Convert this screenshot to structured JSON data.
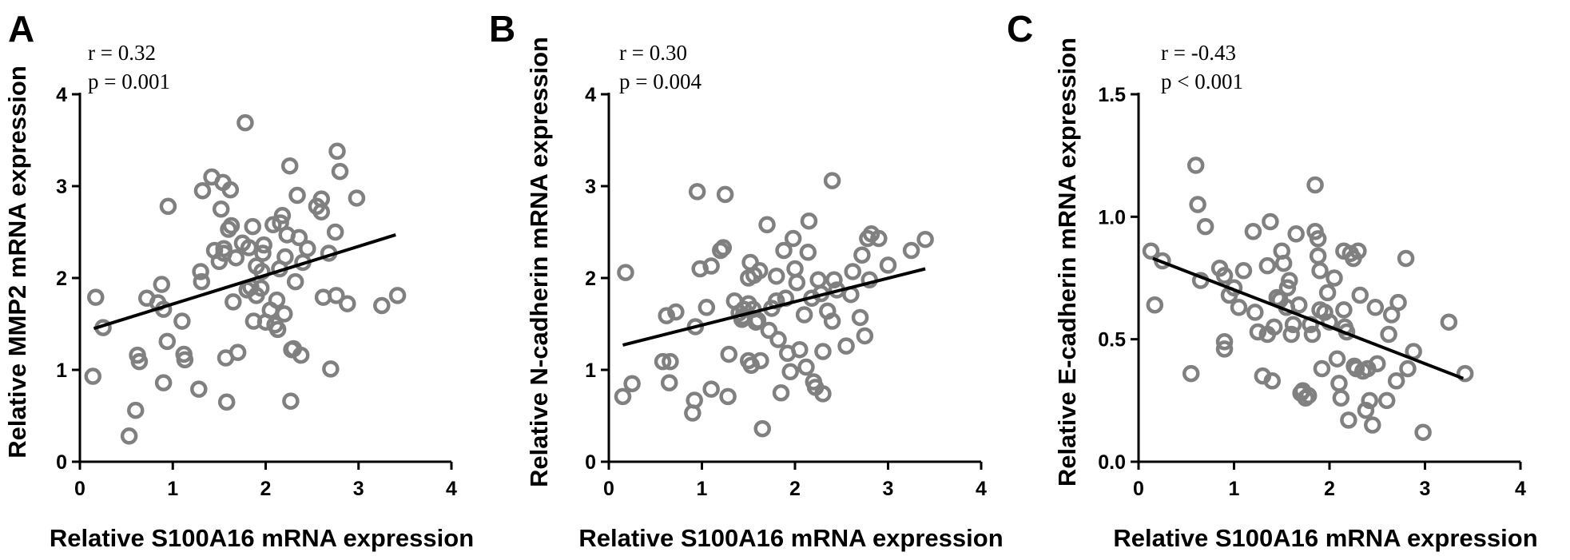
{
  "chart_data": [
    {
      "type": "scatter",
      "panel": "A",
      "stats": [
        "r = 0.32",
        "p = 0.001"
      ],
      "xlabel": "Relative S100A16 mRNA expression",
      "ylabel": "Relative MMP2 mRNA expression",
      "xlim": [
        0,
        4
      ],
      "ylim": [
        0,
        4
      ],
      "xticks": [
        0,
        1,
        2,
        3,
        4
      ],
      "yticks": [
        0,
        1,
        2,
        3,
        4
      ],
      "ytick_labels": [
        "0",
        "1",
        "2",
        "3",
        "4"
      ],
      "fit": [
        [
          0.15,
          1.45
        ],
        [
          3.4,
          2.47
        ]
      ],
      "points": [
        [
          0.14,
          0.93
        ],
        [
          0.17,
          1.79
        ],
        [
          0.25,
          1.46
        ],
        [
          0.53,
          0.28
        ],
        [
          0.6,
          0.56
        ],
        [
          0.62,
          1.16
        ],
        [
          0.64,
          1.09
        ],
        [
          0.72,
          1.78
        ],
        [
          0.84,
          1.73
        ],
        [
          0.88,
          1.93
        ],
        [
          0.9,
          1.66
        ],
        [
          0.9,
          0.86
        ],
        [
          0.94,
          1.31
        ],
        [
          0.95,
          2.78
        ],
        [
          1.1,
          1.53
        ],
        [
          1.12,
          1.17
        ],
        [
          1.13,
          1.11
        ],
        [
          1.28,
          0.79
        ],
        [
          1.3,
          2.07
        ],
        [
          1.31,
          1.96
        ],
        [
          1.32,
          2.95
        ],
        [
          1.42,
          3.1
        ],
        [
          1.45,
          2.3
        ],
        [
          1.5,
          2.18
        ],
        [
          1.52,
          2.75
        ],
        [
          1.54,
          3.04
        ],
        [
          1.55,
          2.32
        ],
        [
          1.55,
          2.27
        ],
        [
          1.57,
          1.13
        ],
        [
          1.58,
          0.65
        ],
        [
          1.6,
          2.53
        ],
        [
          1.62,
          2.96
        ],
        [
          1.63,
          2.57
        ],
        [
          1.65,
          1.74
        ],
        [
          1.68,
          2.22
        ],
        [
          1.7,
          1.19
        ],
        [
          1.75,
          2.38
        ],
        [
          1.78,
          3.69
        ],
        [
          1.8,
          1.87
        ],
        [
          1.82,
          2.33
        ],
        [
          1.84,
          1.9
        ],
        [
          1.86,
          2.56
        ],
        [
          1.87,
          1.53
        ],
        [
          1.9,
          1.81
        ],
        [
          1.9,
          2.13
        ],
        [
          1.95,
          1.89
        ],
        [
          1.96,
          2.07
        ],
        [
          1.97,
          2.27
        ],
        [
          1.98,
          2.36
        ],
        [
          2.0,
          1.52
        ],
        [
          2.05,
          1.65
        ],
        [
          2.08,
          2.58
        ],
        [
          2.1,
          1.49
        ],
        [
          2.12,
          1.76
        ],
        [
          2.13,
          1.44
        ],
        [
          2.15,
          2.1
        ],
        [
          2.16,
          2.6
        ],
        [
          2.18,
          2.68
        ],
        [
          2.2,
          1.61
        ],
        [
          2.21,
          2.23
        ],
        [
          2.23,
          2.47
        ],
        [
          2.26,
          3.22
        ],
        [
          2.27,
          0.66
        ],
        [
          2.28,
          1.22
        ],
        [
          2.3,
          1.23
        ],
        [
          2.32,
          1.96
        ],
        [
          2.34,
          2.9
        ],
        [
          2.36,
          2.44
        ],
        [
          2.38,
          1.16
        ],
        [
          2.4,
          2.17
        ],
        [
          2.45,
          2.32
        ],
        [
          2.55,
          2.78
        ],
        [
          2.6,
          2.86
        ],
        [
          2.6,
          2.72
        ],
        [
          2.62,
          1.79
        ],
        [
          2.68,
          2.27
        ],
        [
          2.7,
          1.01
        ],
        [
          2.75,
          2.5
        ],
        [
          2.76,
          1.81
        ],
        [
          2.77,
          3.38
        ],
        [
          2.8,
          3.16
        ],
        [
          2.88,
          1.72
        ],
        [
          2.98,
          2.87
        ],
        [
          3.25,
          1.7
        ],
        [
          3.42,
          1.81
        ]
      ]
    },
    {
      "type": "scatter",
      "panel": "B",
      "stats": [
        "r = 0.30",
        "p = 0.004"
      ],
      "xlabel": "Relative S100A16 mRNA expression",
      "ylabel": "Relative N-cadherin mRNA expression",
      "xlim": [
        0,
        4
      ],
      "ylim": [
        0,
        4
      ],
      "xticks": [
        0,
        1,
        2,
        3,
        4
      ],
      "yticks": [
        0,
        1,
        2,
        3,
        4
      ],
      "ytick_labels": [
        "0",
        "1",
        "2",
        "3",
        "4"
      ],
      "fit": [
        [
          0.15,
          1.27
        ],
        [
          3.4,
          2.1
        ]
      ],
      "points": [
        [
          0.15,
          0.71
        ],
        [
          0.18,
          2.06
        ],
        [
          0.25,
          0.85
        ],
        [
          0.58,
          1.09
        ],
        [
          0.62,
          1.59
        ],
        [
          0.65,
          0.86
        ],
        [
          0.66,
          1.09
        ],
        [
          0.72,
          1.63
        ],
        [
          0.9,
          0.53
        ],
        [
          0.92,
          0.67
        ],
        [
          0.93,
          1.47
        ],
        [
          0.95,
          2.94
        ],
        [
          0.98,
          2.1
        ],
        [
          1.05,
          1.68
        ],
        [
          1.1,
          2.13
        ],
        [
          1.1,
          0.79
        ],
        [
          1.2,
          2.3
        ],
        [
          1.23,
          2.33
        ],
        [
          1.25,
          2.91
        ],
        [
          1.28,
          0.71
        ],
        [
          1.29,
          1.17
        ],
        [
          1.35,
          1.75
        ],
        [
          1.4,
          1.62
        ],
        [
          1.43,
          1.55
        ],
        [
          1.44,
          1.58
        ],
        [
          1.45,
          1.66
        ],
        [
          1.5,
          1.72
        ],
        [
          1.5,
          2.0
        ],
        [
          1.5,
          1.1
        ],
        [
          1.52,
          2.17
        ],
        [
          1.53,
          1.05
        ],
        [
          1.55,
          1.66
        ],
        [
          1.56,
          2.03
        ],
        [
          1.58,
          1.52
        ],
        [
          1.6,
          1.54
        ],
        [
          1.62,
          2.08
        ],
        [
          1.63,
          1.1
        ],
        [
          1.65,
          0.36
        ],
        [
          1.7,
          2.58
        ],
        [
          1.72,
          1.43
        ],
        [
          1.75,
          1.67
        ],
        [
          1.8,
          2.02
        ],
        [
          1.8,
          1.75
        ],
        [
          1.82,
          1.33
        ],
        [
          1.85,
          0.75
        ],
        [
          1.88,
          2.3
        ],
        [
          1.9,
          1.78
        ],
        [
          1.92,
          1.18
        ],
        [
          1.95,
          0.98
        ],
        [
          1.98,
          2.43
        ],
        [
          2.0,
          2.1
        ],
        [
          2.02,
          1.95
        ],
        [
          2.05,
          1.22
        ],
        [
          2.1,
          1.6
        ],
        [
          2.12,
          1.03
        ],
        [
          2.14,
          2.28
        ],
        [
          2.15,
          2.62
        ],
        [
          2.18,
          1.78
        ],
        [
          2.2,
          0.87
        ],
        [
          2.22,
          0.81
        ],
        [
          2.25,
          1.98
        ],
        [
          2.28,
          1.83
        ],
        [
          2.3,
          0.74
        ],
        [
          2.3,
          1.2
        ],
        [
          2.35,
          1.64
        ],
        [
          2.4,
          1.53
        ],
        [
          2.4,
          3.06
        ],
        [
          2.42,
          1.98
        ],
        [
          2.45,
          1.87
        ],
        [
          2.55,
          1.26
        ],
        [
          2.6,
          1.82
        ],
        [
          2.62,
          2.07
        ],
        [
          2.7,
          1.57
        ],
        [
          2.72,
          2.25
        ],
        [
          2.75,
          1.37
        ],
        [
          2.78,
          2.43
        ],
        [
          2.8,
          1.98
        ],
        [
          2.82,
          2.48
        ],
        [
          2.9,
          2.43
        ],
        [
          3.0,
          2.14
        ],
        [
          3.25,
          2.3
        ],
        [
          3.4,
          2.42
        ]
      ]
    },
    {
      "type": "scatter",
      "panel": "C",
      "stats": [
        "r = -0.43",
        "p < 0.001"
      ],
      "xlabel": "Relative S100A16 mRNA expression",
      "ylabel": "Relative E-cadherin mRNA expression",
      "xlim": [
        0,
        4
      ],
      "ylim": [
        0,
        1.5
      ],
      "xticks": [
        0,
        1,
        2,
        3,
        4
      ],
      "yticks": [
        0,
        0.5,
        1,
        1.5
      ],
      "ytick_labels": [
        "0.0",
        "0.5",
        "1.0",
        "1.5"
      ],
      "fit": [
        [
          0.15,
          0.83
        ],
        [
          3.4,
          0.34
        ]
      ],
      "points": [
        [
          0.13,
          0.86
        ],
        [
          0.17,
          0.64
        ],
        [
          0.25,
          0.82
        ],
        [
          0.55,
          0.36
        ],
        [
          0.6,
          1.21
        ],
        [
          0.62,
          1.05
        ],
        [
          0.65,
          0.74
        ],
        [
          0.7,
          0.96
        ],
        [
          0.85,
          0.79
        ],
        [
          0.9,
          0.76
        ],
        [
          0.9,
          0.49
        ],
        [
          0.9,
          0.46
        ],
        [
          0.95,
          0.68
        ],
        [
          1.0,
          0.71
        ],
        [
          1.05,
          0.63
        ],
        [
          1.1,
          0.78
        ],
        [
          1.2,
          0.94
        ],
        [
          1.22,
          0.61
        ],
        [
          1.25,
          0.53
        ],
        [
          1.3,
          0.35
        ],
        [
          1.35,
          0.8
        ],
        [
          1.35,
          0.52
        ],
        [
          1.38,
          0.98
        ],
        [
          1.4,
          0.33
        ],
        [
          1.42,
          0.55
        ],
        [
          1.45,
          0.67
        ],
        [
          1.48,
          0.66
        ],
        [
          1.5,
          0.86
        ],
        [
          1.52,
          0.81
        ],
        [
          1.55,
          0.63
        ],
        [
          1.56,
          0.71
        ],
        [
          1.58,
          0.74
        ],
        [
          1.6,
          0.52
        ],
        [
          1.62,
          0.56
        ],
        [
          1.65,
          0.93
        ],
        [
          1.68,
          0.64
        ],
        [
          1.7,
          0.28
        ],
        [
          1.72,
          0.29
        ],
        [
          1.75,
          0.26
        ],
        [
          1.78,
          0.27
        ],
        [
          1.8,
          0.56
        ],
        [
          1.82,
          0.52
        ],
        [
          1.85,
          1.13
        ],
        [
          1.85,
          0.94
        ],
        [
          1.88,
          0.91
        ],
        [
          1.88,
          0.84
        ],
        [
          1.9,
          0.78
        ],
        [
          1.9,
          0.62
        ],
        [
          1.92,
          0.38
        ],
        [
          1.95,
          0.61
        ],
        [
          1.98,
          0.69
        ],
        [
          2.0,
          0.57
        ],
        [
          2.05,
          0.75
        ],
        [
          2.08,
          0.42
        ],
        [
          2.1,
          0.32
        ],
        [
          2.12,
          0.26
        ],
        [
          2.15,
          0.86
        ],
        [
          2.15,
          0.62
        ],
        [
          2.16,
          0.55
        ],
        [
          2.18,
          0.53
        ],
        [
          2.2,
          0.17
        ],
        [
          2.22,
          0.85
        ],
        [
          2.25,
          0.83
        ],
        [
          2.26,
          0.39
        ],
        [
          2.28,
          0.38
        ],
        [
          2.3,
          0.86
        ],
        [
          2.32,
          0.68
        ],
        [
          2.35,
          0.37
        ],
        [
          2.38,
          0.21
        ],
        [
          2.4,
          0.38
        ],
        [
          2.42,
          0.25
        ],
        [
          2.45,
          0.15
        ],
        [
          2.48,
          0.63
        ],
        [
          2.5,
          0.4
        ],
        [
          2.6,
          0.25
        ],
        [
          2.62,
          0.52
        ],
        [
          2.65,
          0.6
        ],
        [
          2.7,
          0.33
        ],
        [
          2.72,
          0.65
        ],
        [
          2.8,
          0.83
        ],
        [
          2.82,
          0.38
        ],
        [
          2.88,
          0.45
        ],
        [
          2.98,
          0.12
        ],
        [
          3.25,
          0.57
        ],
        [
          3.42,
          0.36
        ]
      ]
    }
  ]
}
